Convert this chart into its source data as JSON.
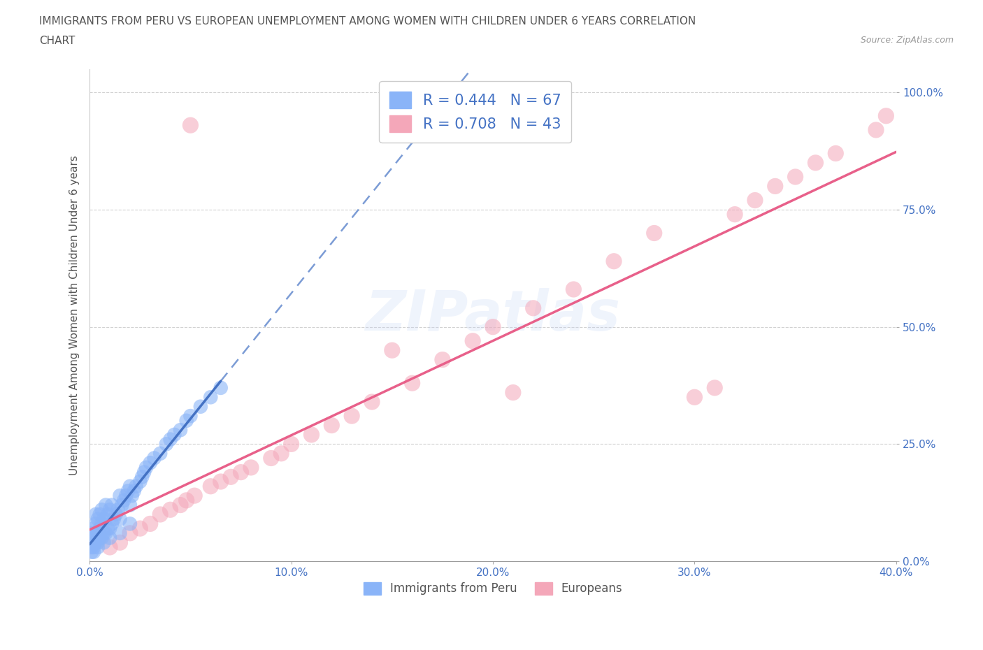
{
  "title_line1": "IMMIGRANTS FROM PERU VS EUROPEAN UNEMPLOYMENT AMONG WOMEN WITH CHILDREN UNDER 6 YEARS CORRELATION",
  "title_line2": "CHART",
  "source": "Source: ZipAtlas.com",
  "ylabel": "Unemployment Among Women with Children Under 6 years",
  "xlim": [
    0.0,
    0.4
  ],
  "ylim": [
    0.0,
    1.05
  ],
  "ytick_vals": [
    0.0,
    0.25,
    0.5,
    0.75,
    1.0
  ],
  "ytick_labels": [
    "0.0%",
    "25.0%",
    "50.0%",
    "75.0%",
    "100.0%"
  ],
  "xtick_vals": [
    0.0,
    0.1,
    0.2,
    0.3,
    0.4
  ],
  "xtick_labels": [
    "0.0%",
    "10.0%",
    "20.0%",
    "30.0%",
    "40.0%"
  ],
  "peru_color": "#8ab4f8",
  "euro_color": "#f4a7b9",
  "peru_trend_color": "#4472c4",
  "euro_trend_color": "#e8608a",
  "peru_R": 0.444,
  "peru_N": 67,
  "euro_R": 0.708,
  "euro_N": 43,
  "peru_name": "Immigrants from Peru",
  "euro_name": "Europeans",
  "watermark": "ZIPatlas",
  "bg_color": "#ffffff",
  "grid_color": "#cccccc",
  "title_color": "#555555",
  "ylabel_color": "#555555",
  "tick_color": "#4472c4",
  "source_color": "#999999",
  "peru_x": [
    0.001,
    0.001,
    0.001,
    0.002,
    0.002,
    0.002,
    0.003,
    0.003,
    0.003,
    0.003,
    0.004,
    0.004,
    0.004,
    0.005,
    0.005,
    0.005,
    0.006,
    0.006,
    0.006,
    0.007,
    0.007,
    0.008,
    0.008,
    0.008,
    0.009,
    0.009,
    0.01,
    0.01,
    0.011,
    0.011,
    0.012,
    0.013,
    0.014,
    0.015,
    0.015,
    0.016,
    0.017,
    0.018,
    0.019,
    0.02,
    0.02,
    0.021,
    0.022,
    0.023,
    0.025,
    0.026,
    0.027,
    0.028,
    0.03,
    0.032,
    0.035,
    0.038,
    0.04,
    0.042,
    0.045,
    0.048,
    0.05,
    0.055,
    0.06,
    0.065,
    0.001,
    0.002,
    0.004,
    0.007,
    0.01,
    0.015,
    0.02
  ],
  "peru_y": [
    0.03,
    0.04,
    0.06,
    0.03,
    0.05,
    0.07,
    0.04,
    0.06,
    0.08,
    0.1,
    0.04,
    0.06,
    0.09,
    0.05,
    0.07,
    0.1,
    0.05,
    0.08,
    0.11,
    0.06,
    0.09,
    0.06,
    0.09,
    0.12,
    0.07,
    0.1,
    0.07,
    0.11,
    0.08,
    0.12,
    0.09,
    0.1,
    0.11,
    0.09,
    0.14,
    0.12,
    0.13,
    0.14,
    0.15,
    0.12,
    0.16,
    0.14,
    0.15,
    0.16,
    0.17,
    0.18,
    0.19,
    0.2,
    0.21,
    0.22,
    0.23,
    0.25,
    0.26,
    0.27,
    0.28,
    0.3,
    0.31,
    0.33,
    0.35,
    0.37,
    0.02,
    0.02,
    0.03,
    0.04,
    0.05,
    0.06,
    0.08
  ],
  "euro_x": [
    0.01,
    0.015,
    0.02,
    0.025,
    0.03,
    0.035,
    0.04,
    0.045,
    0.048,
    0.052,
    0.06,
    0.065,
    0.07,
    0.075,
    0.08,
    0.09,
    0.095,
    0.1,
    0.11,
    0.12,
    0.13,
    0.14,
    0.15,
    0.16,
    0.175,
    0.19,
    0.2,
    0.21,
    0.22,
    0.24,
    0.26,
    0.28,
    0.3,
    0.31,
    0.32,
    0.33,
    0.34,
    0.35,
    0.36,
    0.37,
    0.39,
    0.395,
    0.05
  ],
  "euro_y": [
    0.03,
    0.04,
    0.06,
    0.07,
    0.08,
    0.1,
    0.11,
    0.12,
    0.13,
    0.14,
    0.16,
    0.17,
    0.18,
    0.19,
    0.2,
    0.22,
    0.23,
    0.25,
    0.27,
    0.29,
    0.31,
    0.34,
    0.45,
    0.38,
    0.43,
    0.47,
    0.5,
    0.36,
    0.54,
    0.58,
    0.64,
    0.7,
    0.35,
    0.37,
    0.74,
    0.77,
    0.8,
    0.82,
    0.85,
    0.87,
    0.92,
    0.95,
    0.93
  ]
}
